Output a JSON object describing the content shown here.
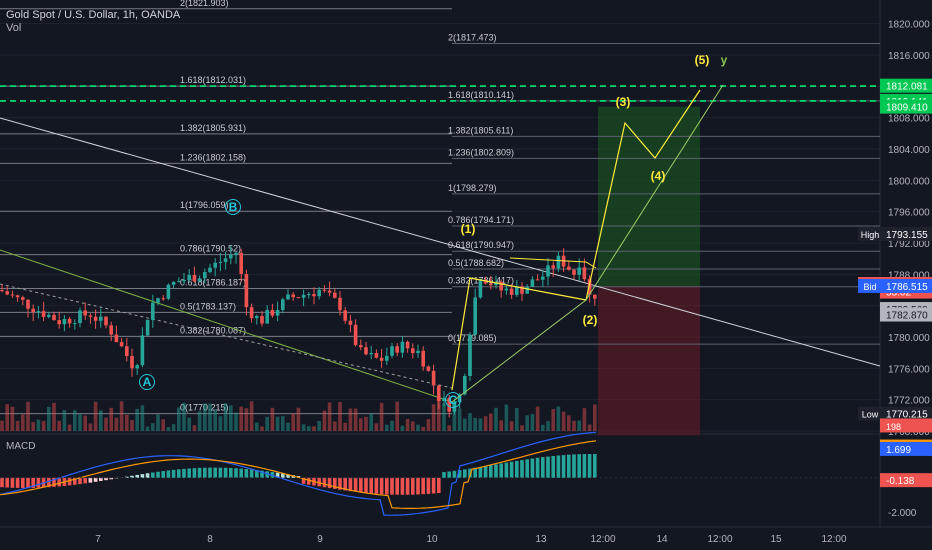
{
  "header": {
    "symbol_line": "Gold Spot / U.S. Dollar, 1h, OANDA",
    "volume_label": "Vol"
  },
  "indicator": {
    "label": "MACD"
  },
  "chart_data": {
    "type": "candlestick",
    "price_axis": {
      "range": [
        1768,
        1822
      ],
      "ticks": [
        "1820.000",
        "1816.000",
        "1812.000",
        "1808.000",
        "1804.000",
        "1800.000",
        "1796.000",
        "1792.000",
        "1788.000",
        "1784.000",
        "1780.000",
        "1776.000",
        "1772.000",
        "1768.000"
      ]
    },
    "price_labels": [
      {
        "text": "1812.081",
        "value": 1812.081,
        "color": "#00c853"
      },
      {
        "text": "1810.141",
        "value": 1810.141,
        "color": "#00c853"
      },
      {
        "text": "1809.410",
        "value": 1809.41,
        "color": "#00c853"
      },
      {
        "tag": "High",
        "text": "1793.155",
        "value": 1793.155,
        "color": "#1e222d"
      },
      {
        "tag": "Ask",
        "text": "1786.765",
        "value": 1786.765,
        "color": "#ef5350"
      },
      {
        "text": "1786.640",
        "value": 1786.64,
        "color": "#ef5350"
      },
      {
        "text": "53:02",
        "value": 1785.8,
        "color": "#ef5350"
      },
      {
        "tag": "Bid",
        "text": "1786.515",
        "value": 1786.515,
        "color": "#2962ff"
      },
      {
        "text": "1783.568",
        "value": 1783.568,
        "color": "#b2b5be"
      },
      {
        "text": "1782.870",
        "value": 1782.87,
        "color": "#b2b5be"
      },
      {
        "tag": "Low",
        "text": "1770.215",
        "value": 1770.215,
        "color": "#1e222d"
      },
      {
        "text": "1768.710",
        "value": 1768.71,
        "color": "#ef5350"
      }
    ],
    "x_axis_labels": [
      "7",
      "8",
      "9",
      "10",
      "13",
      "12:00",
      "14",
      "12:00",
      "15",
      "12:00"
    ],
    "fib_levels_left": [
      {
        "text": "2(1821.903)",
        "value": 1821.903
      },
      {
        "text": "1.618(1812.031)",
        "value": 1812.031
      },
      {
        "text": "1.382(1805.931)",
        "value": 1805.931
      },
      {
        "text": "1.236(1802.158)",
        "value": 1802.158
      },
      {
        "text": "1(1796.059)",
        "value": 1796.059
      },
      {
        "text": "0.786(1790.52)",
        "value": 1790.52
      },
      {
        "text": "0.618(1786.187)",
        "value": 1786.187
      },
      {
        "text": "0.5(1783.137)",
        "value": 1783.137
      },
      {
        "text": "0.382(1780.087)",
        "value": 1780.087
      },
      {
        "text": "0(1770.215)",
        "value": 1770.215
      }
    ],
    "fib_levels_right": [
      {
        "text": "2(1817.473)",
        "value": 1817.473
      },
      {
        "text": "1.618(1810.141)",
        "value": 1810.141
      },
      {
        "text": "1.382(1805.611)",
        "value": 1805.611
      },
      {
        "text": "1.236(1802.809)",
        "value": 1802.809
      },
      {
        "text": "1(1798.279)",
        "value": 1798.279
      },
      {
        "text": "0.786(1794.171)",
        "value": 1794.171
      },
      {
        "text": "0.618(1790.947)",
        "value": 1790.947
      },
      {
        "text": "0.5(1788.682)",
        "value": 1788.682
      },
      {
        "text": "0.382(1786.417)",
        "value": 1786.417
      },
      {
        "text": "0(1779.085)",
        "value": 1779.085
      }
    ],
    "wave_labels": [
      {
        "text": "A",
        "circled": true,
        "color": "#26c6da"
      },
      {
        "text": "B",
        "circled": true,
        "color": "#26c6da"
      },
      {
        "text": "C",
        "circled": true,
        "color": "#26c6da"
      },
      {
        "text": "(1)",
        "color": "#ffeb3b"
      },
      {
        "text": "(2)",
        "color": "#ffeb3b"
      },
      {
        "text": "(3)",
        "color": "#ffeb3b"
      },
      {
        "text": "(4)",
        "color": "#ffeb3b"
      },
      {
        "text": "(5)",
        "color": "#ffeb3b"
      },
      {
        "text": "y",
        "color": "#8bc34a"
      }
    ],
    "macd_axis": {
      "range": [
        -2.6,
        2.4
      ],
      "ticks": [
        "-2.000"
      ]
    },
    "macd_labels": [
      {
        "text": "1.837",
        "value": 1.837,
        "color": "#ff9800"
      },
      {
        "text": "1.699",
        "value": 1.699,
        "color": "#2962ff"
      },
      {
        "text": "-0.138",
        "value": -0.138,
        "color": "#ef5350"
      }
    ],
    "vol_label": "198",
    "colors": {
      "up": "#26a69a",
      "down": "#ef5350",
      "bg": "#131722",
      "grid": "#1f2330",
      "text": "#b2b5be",
      "fib": "#787b86",
      "fib_right": "#5d8fd6",
      "wave_yellow": "#ffeb3b",
      "trend_white": "#d1d4dc"
    }
  }
}
